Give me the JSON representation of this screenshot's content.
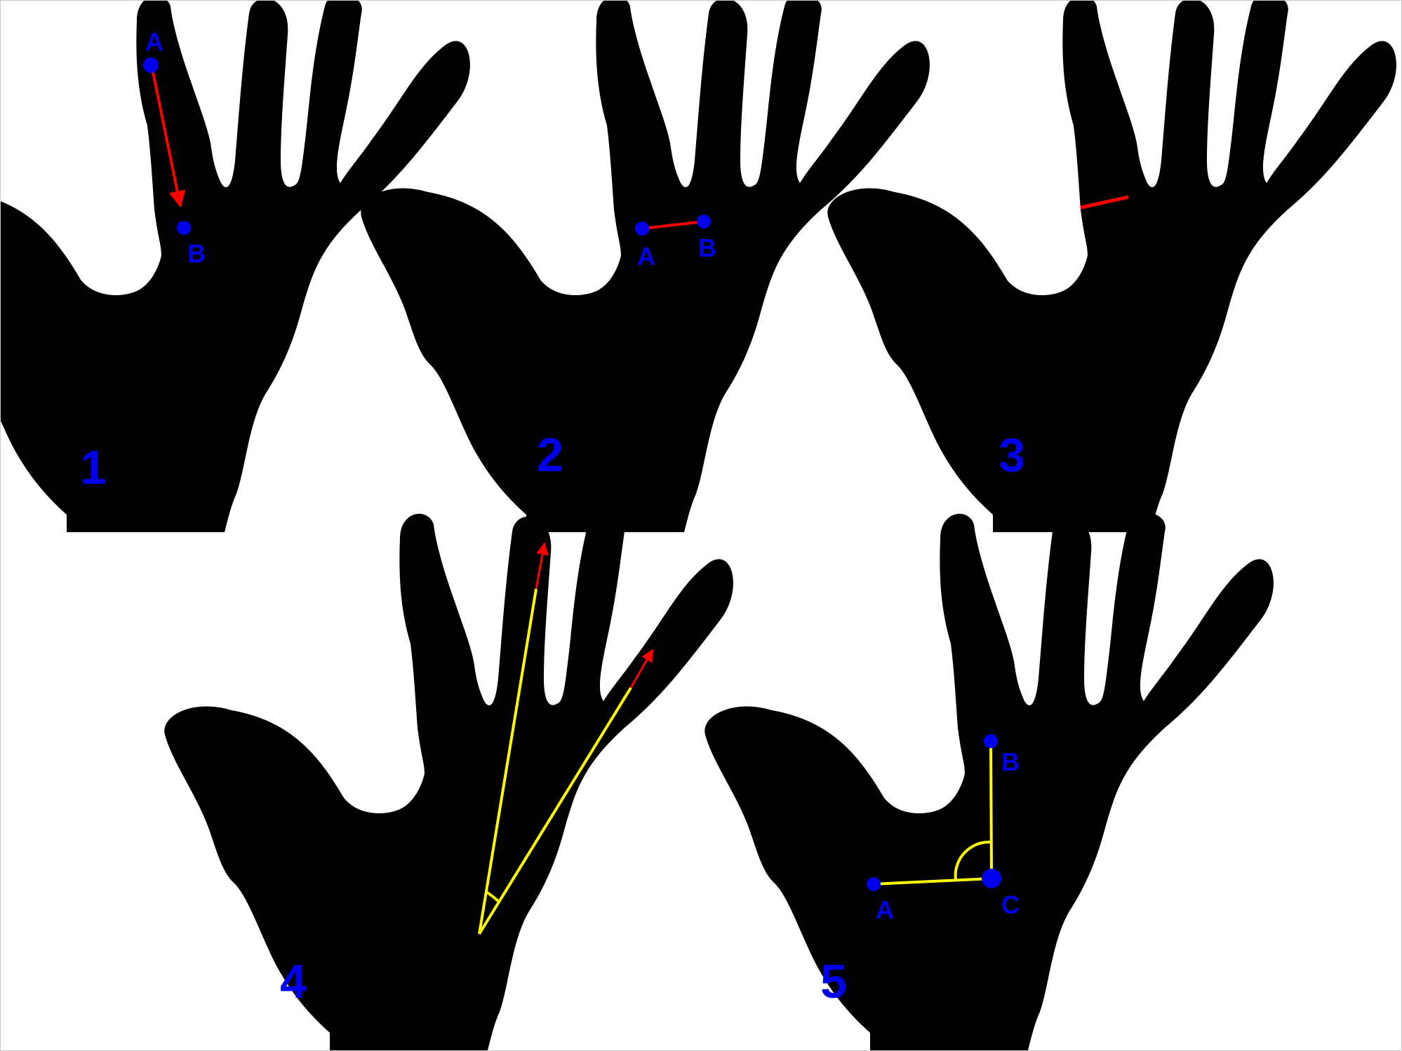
{
  "colors": {
    "hand": "#000000",
    "label": "#0000ee",
    "arrow": "#ff0000",
    "construction": "#ffff00",
    "background": "#ffffff",
    "border": "#c8c8c8"
  },
  "panels": [
    {
      "number": "1",
      "points": {
        "a": "A",
        "b": "B"
      }
    },
    {
      "number": "2",
      "points": {
        "a": "A",
        "b": "B"
      }
    },
    {
      "number": "3"
    },
    {
      "number": "4"
    },
    {
      "number": "5",
      "points": {
        "a": "A",
        "b": "B",
        "c": "C"
      }
    }
  ]
}
